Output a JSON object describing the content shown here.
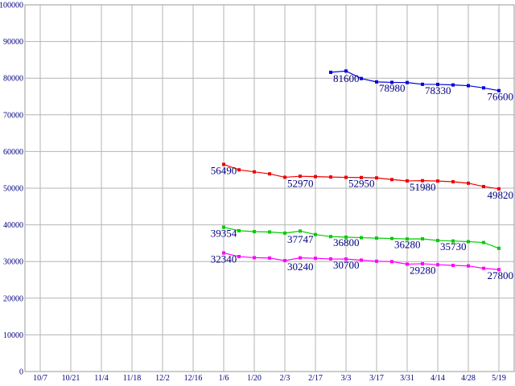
{
  "chart_data": {
    "type": "line",
    "title": "",
    "xlabel": "",
    "ylabel": "",
    "ylim": [
      0,
      100000
    ],
    "grid": true,
    "legend": "none",
    "background_color": "#ffffff",
    "grid_color": "#b4b4b4",
    "border_color": "#9a9a9a",
    "axis_text_color": "#000080",
    "annotation_text_color": "#000080",
    "y_tick_labels": [
      "0",
      "10000",
      "20000",
      "30000",
      "40000",
      "50000",
      "60000",
      "70000",
      "80000",
      "90000",
      "100000"
    ],
    "y_tick_values": [
      0,
      10000,
      20000,
      30000,
      40000,
      50000,
      60000,
      70000,
      80000,
      90000,
      100000
    ],
    "x_tick_labels": [
      "10/7",
      "10/21",
      "11/4",
      "11/18",
      "12/2",
      "12/16",
      "1/6",
      "1/20",
      "2/3",
      "2/17",
      "3/3",
      "3/17",
      "3/31",
      "4/14",
      "4/28",
      "5/19"
    ],
    "points_per_x_tick": 2,
    "series_start_x_tick_label": "1/6",
    "series": [
      {
        "name": "blue",
        "color": "#0000dd",
        "start_slot": 7,
        "values": [
          81600,
          81950,
          79900,
          78980,
          78850,
          78800,
          78330,
          78300,
          78150,
          77950,
          77350,
          76600
        ],
        "labels": [
          {
            "slot": 7,
            "text": "81600",
            "align": "left"
          },
          {
            "slot": 10,
            "text": "78980",
            "align": "left"
          },
          {
            "slot": 13,
            "text": "78330",
            "align": "left"
          },
          {
            "slot": 18,
            "text": "76600",
            "align": "right"
          }
        ]
      },
      {
        "name": "red",
        "color": "#ee0000",
        "start_slot": 0,
        "values": [
          56490,
          55000,
          54450,
          53900,
          52970,
          53250,
          53150,
          53050,
          52950,
          52900,
          52800,
          52350,
          51980,
          52050,
          51950,
          51750,
          51350,
          50450,
          49820
        ],
        "labels": [
          {
            "slot": 0,
            "text": "56490",
            "align": "center"
          },
          {
            "slot": 4,
            "text": "52970",
            "align": "left"
          },
          {
            "slot": 8,
            "text": "52950",
            "align": "left"
          },
          {
            "slot": 12,
            "text": "51980",
            "align": "left"
          },
          {
            "slot": 18,
            "text": "49820",
            "align": "right"
          }
        ]
      },
      {
        "name": "green",
        "color": "#00cc00",
        "start_slot": 0,
        "values": [
          39354,
          38400,
          38150,
          38050,
          37747,
          38300,
          37350,
          36800,
          36650,
          36500,
          36380,
          36280,
          36150,
          36180,
          35730,
          35600,
          35420,
          35180,
          33600
        ],
        "labels": [
          {
            "slot": 0,
            "text": "39354",
            "align": "center"
          },
          {
            "slot": 4,
            "text": "37747",
            "align": "left"
          },
          {
            "slot": 7,
            "text": "36800",
            "align": "left"
          },
          {
            "slot": 11,
            "text": "36280",
            "align": "left"
          },
          {
            "slot": 14,
            "text": "35730",
            "align": "left"
          }
        ]
      },
      {
        "name": "magenta",
        "color": "#ff00ff",
        "start_slot": 0,
        "values": [
          32340,
          31350,
          31050,
          30950,
          30240,
          31000,
          30880,
          30700,
          30680,
          30380,
          30080,
          29980,
          29280,
          29400,
          29120,
          28950,
          28800,
          28150,
          27800
        ],
        "labels": [
          {
            "slot": 0,
            "text": "32340",
            "align": "center"
          },
          {
            "slot": 4,
            "text": "30240",
            "align": "left"
          },
          {
            "slot": 7,
            "text": "30700",
            "align": "left"
          },
          {
            "slot": 12,
            "text": "29280",
            "align": "left"
          },
          {
            "slot": 18,
            "text": "27800",
            "align": "right"
          }
        ]
      }
    ]
  }
}
